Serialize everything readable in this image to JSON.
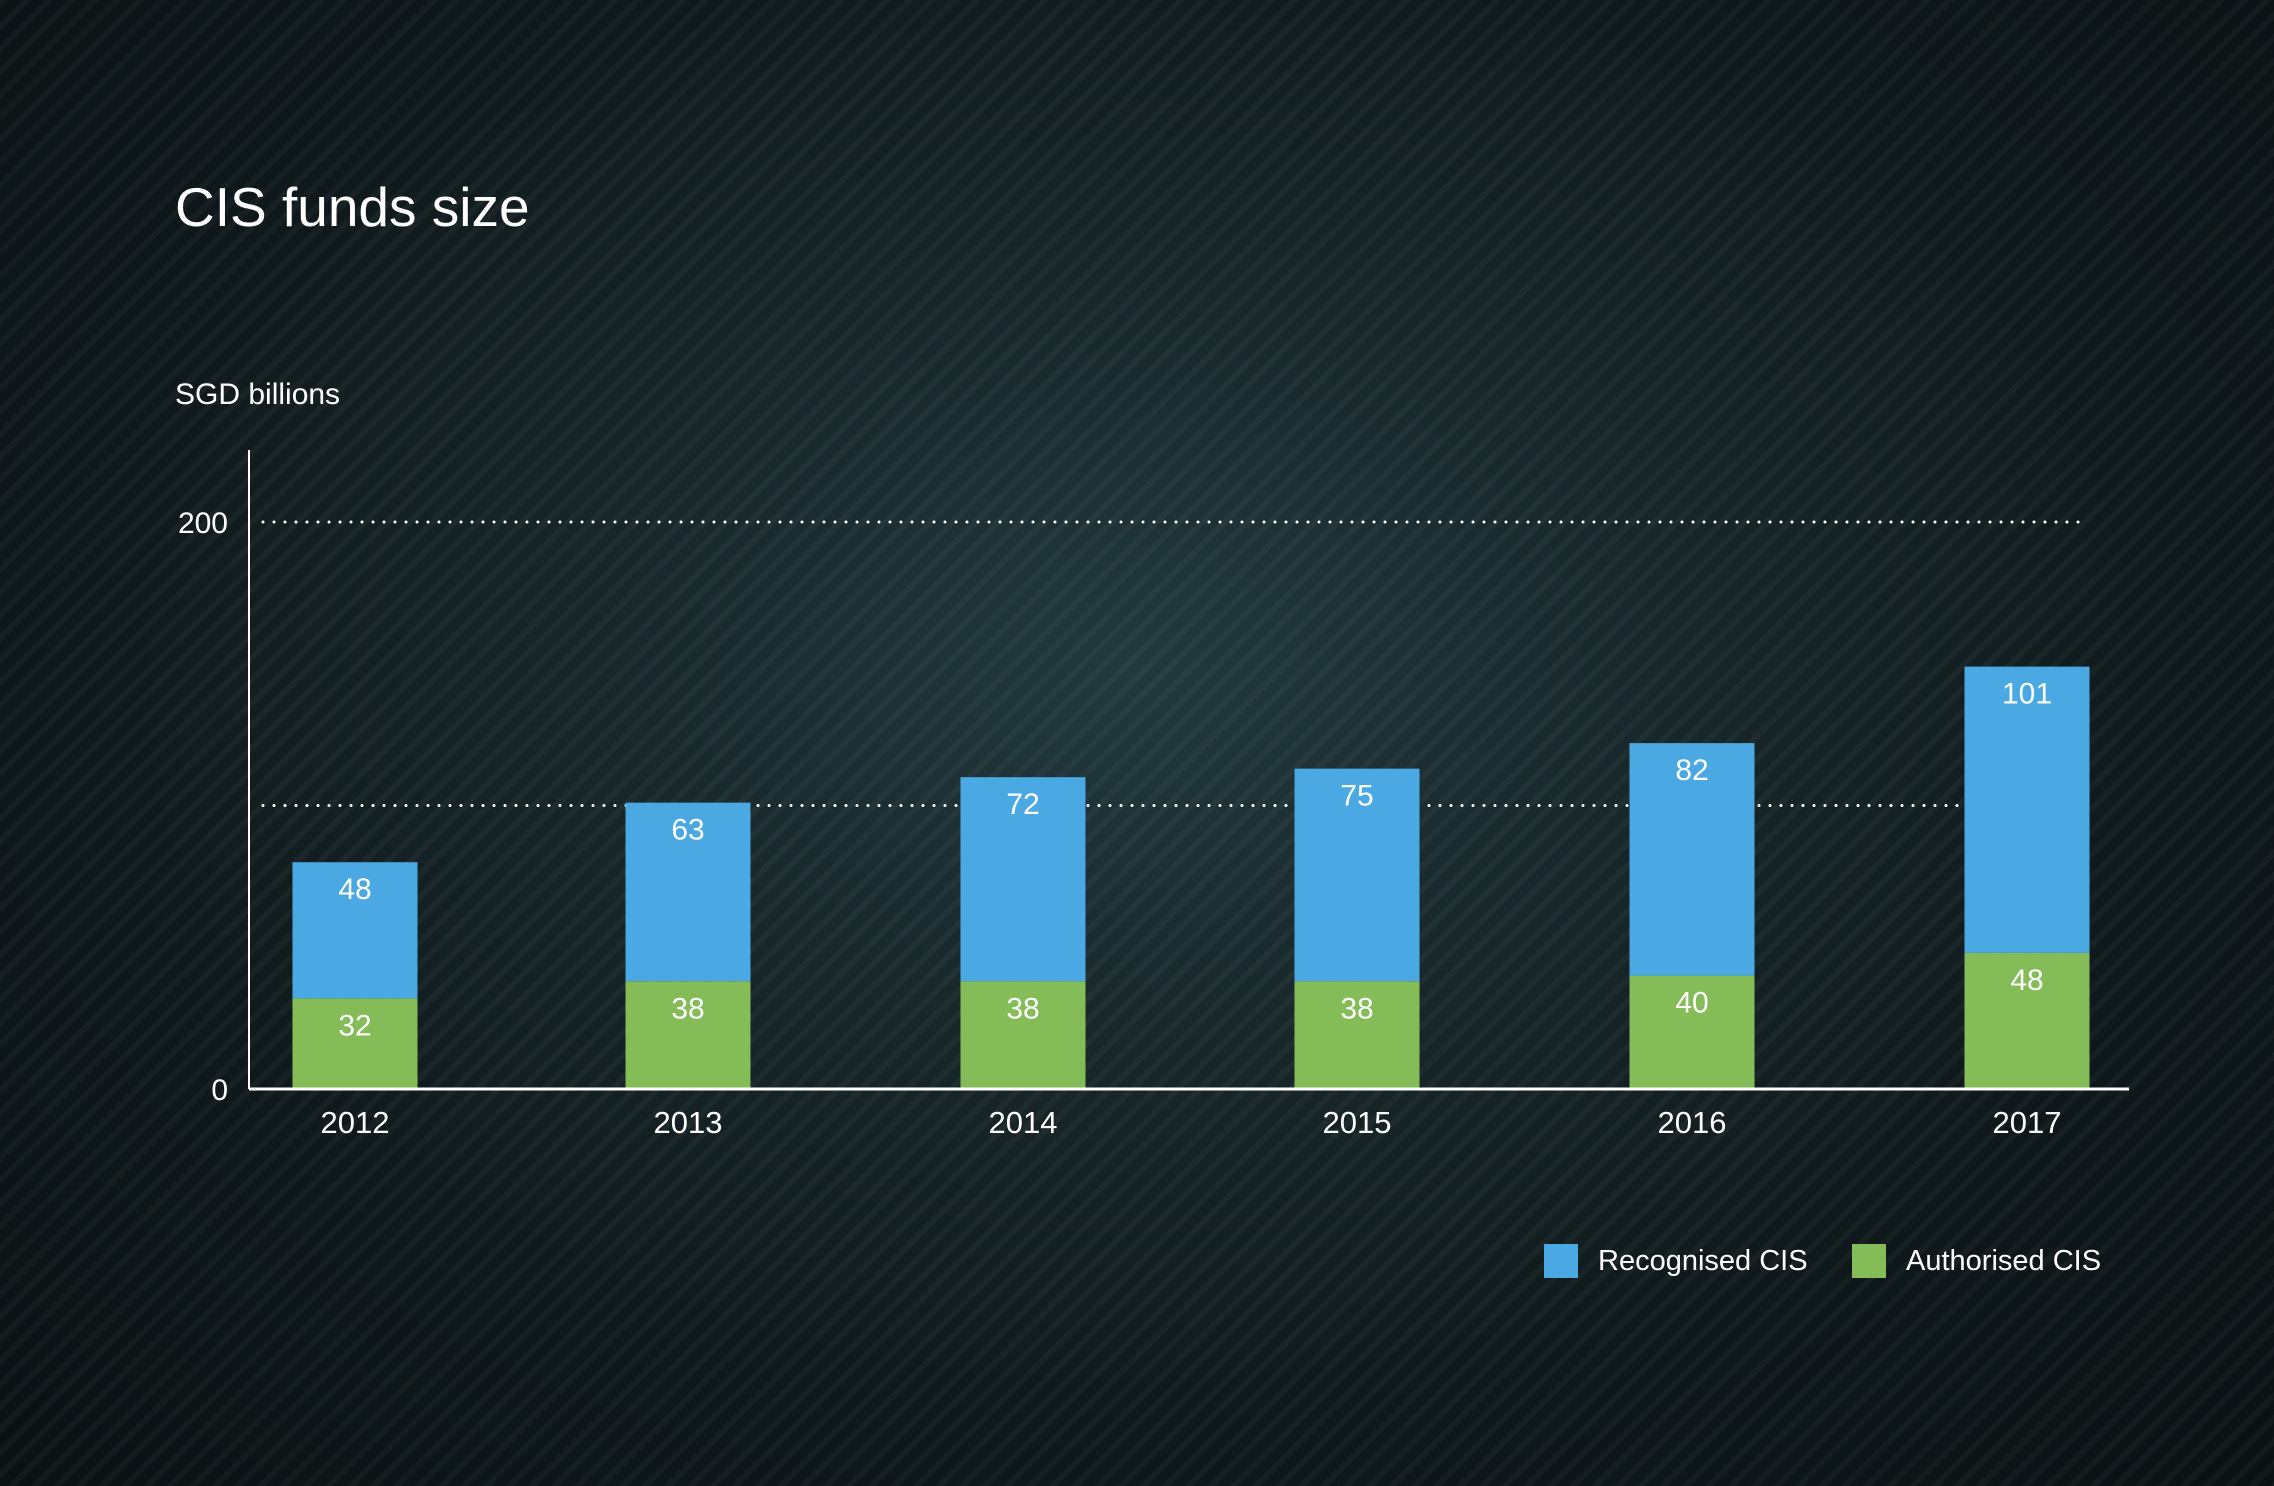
{
  "chart_data": {
    "type": "bar",
    "stacked": true,
    "title": "CIS funds size",
    "ylabel": "SGD billions",
    "xlabel": "",
    "categories": [
      "2012",
      "2013",
      "2014",
      "2015",
      "2016",
      "2017"
    ],
    "ylim": [
      0,
      200
    ],
    "yticks_labelled": [
      0,
      200
    ],
    "gridlines": [
      100,
      200
    ],
    "grid": "dotted horizontal",
    "legend_position": "bottom-right",
    "series": [
      {
        "name": "Authorised CIS",
        "color": "#84bc58",
        "values": [
          32,
          38,
          38,
          38,
          40,
          48
        ]
      },
      {
        "name": "Recognised CIS",
        "color": "#4aa8e2",
        "values": [
          48,
          63,
          72,
          75,
          82,
          101
        ]
      }
    ]
  }
}
